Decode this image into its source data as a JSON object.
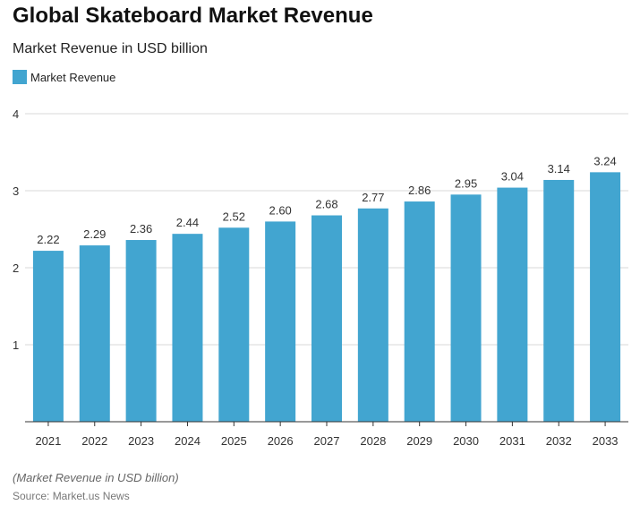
{
  "chart_data": {
    "type": "bar",
    "title": "Global Skateboard Market Revenue",
    "subtitle": "Market Revenue in USD billion",
    "categories": [
      "2021",
      "2022",
      "2023",
      "2024",
      "2025",
      "2026",
      "2027",
      "2028",
      "2029",
      "2030",
      "2031",
      "2032",
      "2033"
    ],
    "series": [
      {
        "name": "Market Revenue",
        "values": [
          2.22,
          2.29,
          2.36,
          2.44,
          2.52,
          2.6,
          2.68,
          2.77,
          2.86,
          2.95,
          3.04,
          3.14,
          3.24
        ],
        "labels": [
          "2.22",
          "2.29",
          "2.36",
          "2.44",
          "2.52",
          "2.60",
          "2.68",
          "2.77",
          "2.86",
          "2.95",
          "3.04",
          "3.14",
          "3.24"
        ],
        "color": "#42a5d0"
      }
    ],
    "ylim": [
      0,
      4
    ],
    "yticks": [
      "1",
      "2",
      "3",
      "4"
    ],
    "grid": true,
    "legend_position": "top-left"
  },
  "footnote": "(Market Revenue in USD billion)",
  "source": "Source: Market.us News"
}
